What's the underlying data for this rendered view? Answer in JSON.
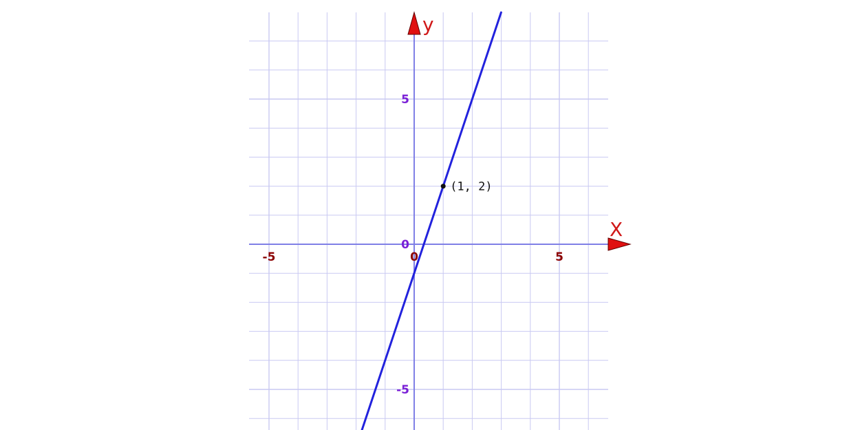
{
  "chart_data": {
    "type": "line",
    "xlabel": "X",
    "ylabel": "y",
    "xlim": [
      -5.7,
      6.7
    ],
    "ylim": [
      -6.5,
      7.9
    ],
    "grid": true,
    "x_ticks": [
      {
        "value": -5,
        "label": "-5"
      },
      {
        "value": 0,
        "label": "0"
      },
      {
        "value": 5,
        "label": "5"
      }
    ],
    "y_ticks": [
      {
        "value": 5,
        "label": "5"
      },
      {
        "value": 0,
        "label": "0"
      },
      {
        "value": -5,
        "label": "-5"
      }
    ],
    "series": [
      {
        "slope": 3,
        "intercept": -1,
        "color": "#2222dd"
      }
    ],
    "points": [
      {
        "x": 1,
        "y": 2,
        "label": "(1, 2)"
      }
    ],
    "colors": {
      "grid": "#c9c9f2",
      "axis": "#7f7fe6",
      "arrow": "#e01010",
      "x_tick": "#8b0000",
      "y_tick": "#7a1fd6"
    }
  }
}
